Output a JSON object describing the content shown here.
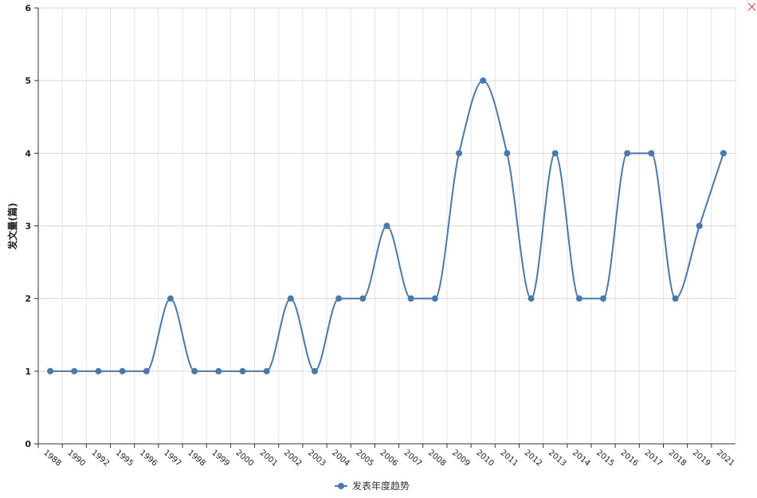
{
  "chart_data": {
    "type": "line",
    "y_label": "发文量(篇)",
    "categories": [
      "1988",
      "1990",
      "1992",
      "1995",
      "1996",
      "1997",
      "1998",
      "1999",
      "2000",
      "2001",
      "2002",
      "2003",
      "2004",
      "2005",
      "2006",
      "2007",
      "2008",
      "2009",
      "2010",
      "2011",
      "2012",
      "2013",
      "2014",
      "2015",
      "2016",
      "2017",
      "2018",
      "2019",
      "2021"
    ],
    "series": [
      {
        "name": "发表年度趋势",
        "color": "#4a78a8",
        "values": [
          1,
          1,
          1,
          1,
          1,
          2,
          1,
          1,
          1,
          1,
          2,
          1,
          2,
          2,
          3,
          2,
          2,
          4,
          5,
          4,
          2,
          4,
          2,
          2,
          4,
          4,
          2,
          3,
          4
        ]
      }
    ],
    "ylim": [
      0,
      6
    ],
    "yticks": [
      0,
      1,
      2,
      3,
      4,
      5,
      6
    ],
    "grid": true,
    "smooth": true,
    "legend": "bottom"
  }
}
